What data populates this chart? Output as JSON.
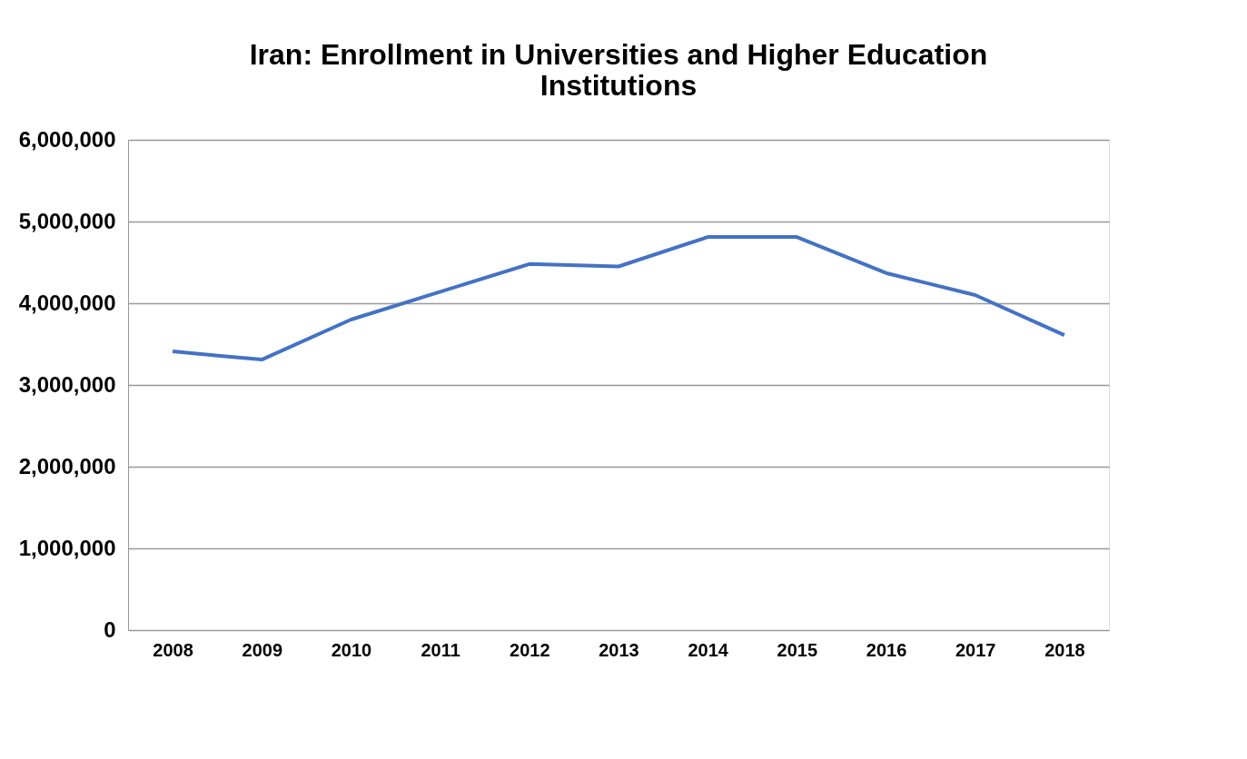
{
  "chart_data": {
    "type": "line",
    "title": [
      "Iran: Enrollment in Universities and Higher Education",
      "Institutions"
    ],
    "categories": [
      "2008",
      "2009",
      "2010",
      "2011",
      "2012",
      "2013",
      "2014",
      "2015",
      "2016",
      "2017",
      "2018"
    ],
    "series": [
      {
        "color": "#4472c4",
        "values": [
          3410000,
          3310000,
          3800000,
          4140000,
          4480000,
          4450000,
          4810000,
          4810000,
          4370000,
          4100000,
          3610000
        ]
      }
    ],
    "ylim": [
      0,
      6000000
    ],
    "yticks": [
      0,
      {
        "value": 1000000,
        "label": "1,000,000"
      },
      {
        "value": 2000000,
        "label": "2,000,000"
      },
      {
        "value": 3000000,
        "label": "3,000,000"
      },
      {
        "value": 4000000,
        "label": "4,000,000"
      },
      {
        "value": 5000000,
        "label": "5,000,000"
      },
      {
        "value": 6000000,
        "label": "6,000,000"
      }
    ],
    "grid": "y",
    "legend": false,
    "marker": "none",
    "line_style": "solid"
  }
}
